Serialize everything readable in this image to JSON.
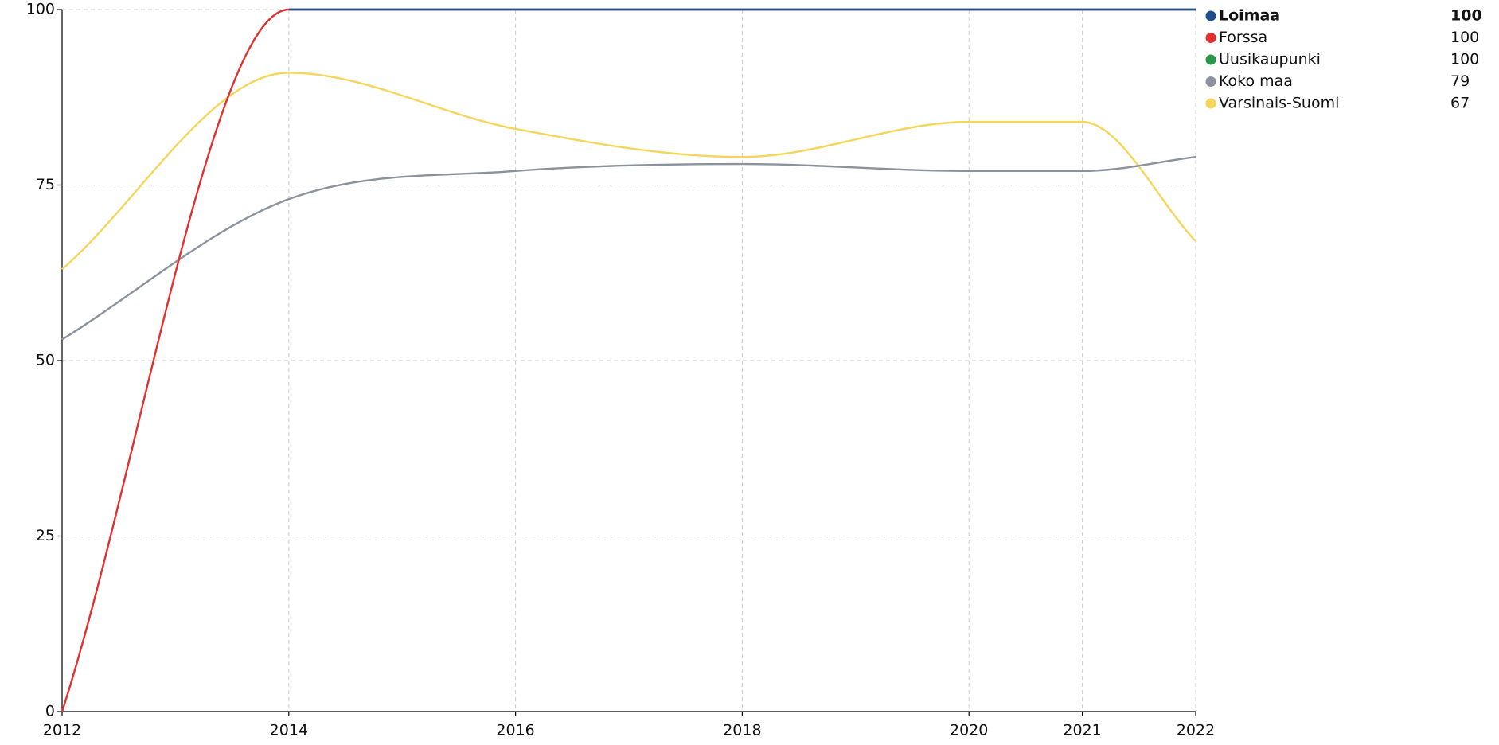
{
  "chart_data": {
    "type": "line",
    "x": [
      2012,
      2014,
      2016,
      2018,
      2020,
      2021,
      2022
    ],
    "xlim": [
      2012,
      2022
    ],
    "xticks": [
      2012,
      2014,
      2016,
      2018,
      2020,
      2021,
      2022
    ],
    "ylim": [
      0,
      100
    ],
    "yticks": [
      0,
      25,
      50,
      75,
      100
    ],
    "grid": true,
    "series": [
      {
        "name": "Loimaa",
        "color": "#1f4e8c",
        "bold": true,
        "values": [
          null,
          100,
          100,
          100,
          100,
          100,
          100
        ]
      },
      {
        "name": "Forssa",
        "color": "#e03030",
        "values": [
          0,
          100,
          100,
          100,
          100,
          100,
          100
        ]
      },
      {
        "name": "Uusikaupunki",
        "color": "#2a9a4a",
        "values": [
          null,
          100,
          100,
          100,
          100,
          100,
          100
        ]
      },
      {
        "name": "Koko maa",
        "color": "#8a929e",
        "values": [
          53,
          73,
          77,
          78,
          77,
          77,
          79
        ]
      },
      {
        "name": "Varsinais-Suomi",
        "color": "#f5d55a",
        "values": [
          63,
          91,
          83,
          79,
          84,
          84,
          67
        ]
      }
    ]
  }
}
